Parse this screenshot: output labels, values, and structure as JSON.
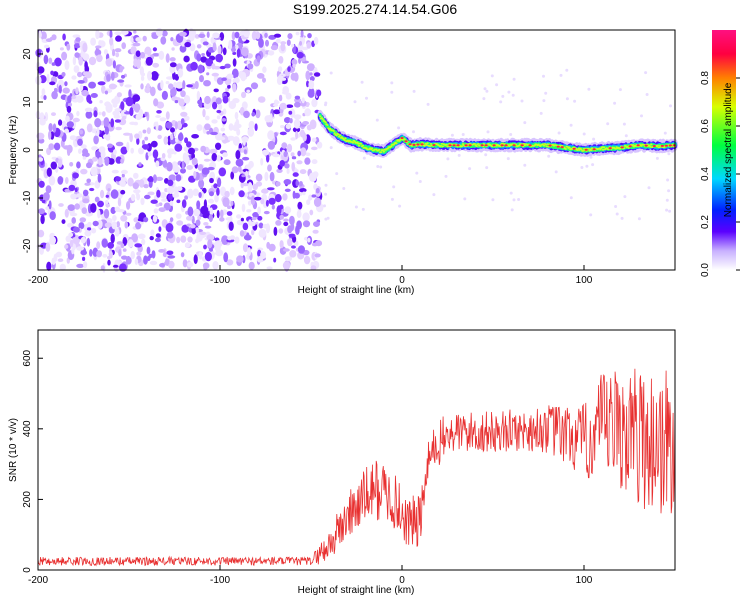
{
  "title": "S199.2025.274.14.54.G06",
  "chart_data": [
    {
      "type": "heatmap",
      "xlabel": "Height of straight line (km)",
      "ylabel": "Frequency (Hz)",
      "xlim": [
        -200,
        150
      ],
      "ylim": [
        -25,
        25
      ],
      "xticks": [
        -200,
        -100,
        0,
        100
      ],
      "yticks": [
        -20,
        -10,
        0,
        10,
        20
      ],
      "noise_region": [
        -200,
        -45
      ],
      "ridge": {
        "x": [
          -45,
          -40,
          -35,
          -30,
          -25,
          -20,
          -15,
          -10,
          -5,
          0,
          5,
          10,
          20,
          30,
          40,
          50,
          60,
          70,
          80,
          90,
          100,
          110,
          120,
          130,
          140,
          150
        ],
        "y": [
          7,
          4.5,
          3,
          2,
          1.5,
          0.5,
          0,
          -0.3,
          1,
          2.5,
          1,
          1.2,
          1,
          1,
          1,
          1,
          1,
          1,
          1,
          0.5,
          0,
          0.3,
          0.5,
          1,
          0.8,
          1
        ]
      },
      "colorbar": {
        "label": "Normalized spectral amplitude",
        "ticks": [
          "0.0",
          "0.2",
          "0.4",
          "0.6",
          "0.8"
        ],
        "range": [
          0,
          1
        ]
      }
    },
    {
      "type": "line",
      "xlabel": "Height of straight line (km)",
      "ylabel": "SNR (10 * v/v)",
      "xlim": [
        -200,
        150
      ],
      "ylim": [
        0,
        680
      ],
      "xticks": [
        -200,
        -100,
        0,
        100
      ],
      "yticks": [
        0,
        200,
        400,
        600
      ],
      "series": [
        {
          "name": "SNR",
          "color": "#e83030",
          "x": [
            -200,
            -150,
            -100,
            -50,
            -40,
            -35,
            -30,
            -25,
            -20,
            -15,
            -10,
            -5,
            0,
            5,
            10,
            15,
            20,
            25,
            30,
            40,
            50,
            60,
            70,
            80,
            90,
            100,
            110,
            120,
            130,
            140,
            150
          ],
          "mean": [
            25,
            25,
            25,
            25,
            70,
            110,
            150,
            180,
            210,
            230,
            220,
            200,
            160,
            130,
            140,
            320,
            360,
            380,
            390,
            390,
            390,
            395,
            395,
            400,
            380,
            360,
            400,
            400,
            380,
            360,
            350
          ],
          "amp": [
            12,
            12,
            12,
            12,
            50,
            60,
            70,
            80,
            80,
            90,
            90,
            80,
            80,
            80,
            80,
            60,
            70,
            60,
            60,
            60,
            60,
            60,
            60,
            70,
            90,
            110,
            160,
            180,
            200,
            220,
            230
          ]
        }
      ]
    }
  ]
}
